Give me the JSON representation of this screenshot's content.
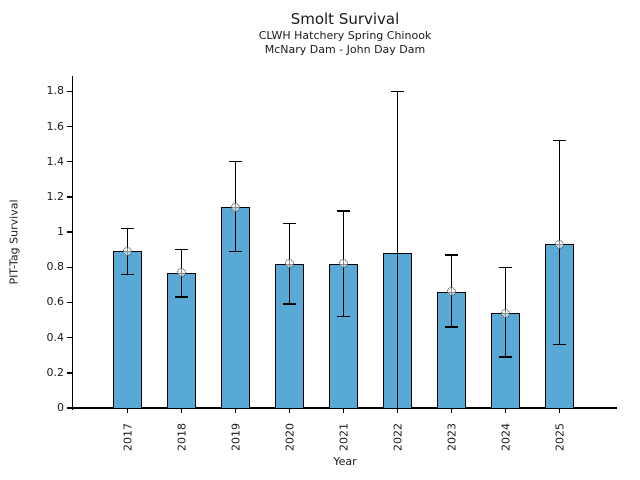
{
  "header": {
    "title": "Smolt Survival",
    "subtitle1": "CLWH Hatchery Spring Chinook",
    "subtitle2": "McNary Dam - John Day Dam"
  },
  "chart_data": {
    "type": "bar",
    "title": "Smolt Survival",
    "subtitle": [
      "CLWH Hatchery Spring Chinook",
      "McNary Dam - John Day Dam"
    ],
    "xlabel": "Year",
    "ylabel": "PIT-Tag Survival",
    "categories": [
      "2017",
      "2018",
      "2019",
      "2020",
      "2021",
      "2022",
      "2023",
      "2024",
      "2025"
    ],
    "values": [
      0.89,
      0.77,
      1.14,
      0.82,
      0.82,
      0.88,
      0.66,
      0.54,
      0.93
    ],
    "error_low": [
      0.76,
      0.63,
      0.89,
      0.59,
      0.52,
      0.0,
      0.46,
      0.29,
      0.36
    ],
    "error_high": [
      1.02,
      0.9,
      1.4,
      1.05,
      1.12,
      1.8,
      0.87,
      0.8,
      1.52
    ],
    "point_markers": [
      true,
      true,
      true,
      true,
      true,
      false,
      true,
      true,
      true
    ],
    "ytick_values": [
      0,
      0.2,
      0.4,
      0.6,
      0.8,
      1,
      1.2,
      1.4,
      1.6,
      1.8
    ],
    "ytick_labels": [
      "0",
      "0.2",
      "0.4",
      "0.6",
      "0.8",
      "1",
      "1.2",
      "1.4",
      "1.6",
      "1.8"
    ],
    "ylim": [
      0,
      1.89
    ],
    "grid": false,
    "legend": null,
    "bar_color": "#58A9D5",
    "bar_edge_color": "#000000",
    "errorbar_color": "#000000",
    "text_color": "#1a1a1a"
  }
}
